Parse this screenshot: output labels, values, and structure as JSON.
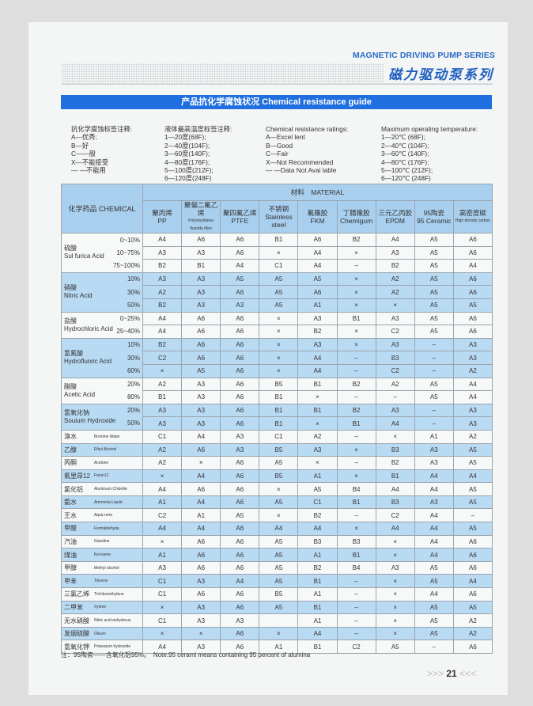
{
  "header": {
    "series_en": "MAGNETIC DRIVING PUMP SERIES",
    "series_cn": "磁力驱动泵系列",
    "band_title": "产品抗化学腐蚀状况 Chemical resistance guide"
  },
  "legend": [
    [
      "抗化学腐蚀标签注释:",
      "A—优秀;",
      "B—好",
      "C——般",
      "X—不能接受",
      "— —不能用"
    ],
    [
      "液体最高温度标签注释:",
      "1—20度(68F);",
      "2—40度(104F);",
      "3—60度(140F);",
      "4—80度(176F);",
      "5—100度(212F);",
      "6—120度(248F)"
    ],
    [
      "Chemical resistance ratings:",
      "A—Excel lent",
      "B—Good",
      "C—Fair",
      "X—Not Recommended",
      "— —Data Not Avai lable"
    ],
    [
      "Maximum operating temperature:",
      "1—20℃ (68F);",
      "2—40℃ (104F);",
      "3—60℃ (140F);",
      "4—80℃ (176F);",
      "5—100℃ (212F);",
      "6—120℃ (248F)"
    ]
  ],
  "table": {
    "chemical_header": "化学药品 CHEMICAL",
    "material_header": "材料　MATERIAL",
    "columns": [
      {
        "cn": "聚丙烯",
        "en": "PP"
      },
      {
        "cn": "聚偏二氟乙烯",
        "en": "Polyvinylidene fluoride fibre",
        "small": true
      },
      {
        "cn": "聚四氟乙烯",
        "en": "PTFE"
      },
      {
        "cn": "不锈钢",
        "en": "Stainless steel"
      },
      {
        "cn": "氟橡胶",
        "en": "FKM"
      },
      {
        "cn": "丁腈橡胶",
        "en": "Chemigum"
      },
      {
        "cn": "三元乙丙胶",
        "en": "EPDM"
      },
      {
        "cn": "95陶瓷",
        "en": "95 Ceramic"
      },
      {
        "cn": "高密度碳",
        "en": "High density carbon",
        "small": true
      }
    ],
    "groups": [
      {
        "cn": "硫酸",
        "en": "Sul furica Acid",
        "rows": [
          {
            "conc": "0~10%",
            "values": [
              "A4",
              "A6",
              "A6",
              "B1",
              "A6",
              "B2",
              "A4",
              "A5",
              "A6"
            ]
          },
          {
            "conc": "10~75%",
            "values": [
              "A3",
              "A3",
              "A6",
              "×",
              "A4",
              "×",
              "A3",
              "A5",
              "A6"
            ]
          },
          {
            "conc": "75~100%",
            "values": [
              "B2",
              "B1",
              "A4",
              "C1",
              "A4",
              "–",
              "B2",
              "A5",
              "A4"
            ]
          }
        ]
      },
      {
        "cn": "硝酸",
        "en": "Nitric Acid",
        "rows": [
          {
            "conc": "10%",
            "values": [
              "A3",
              "A3",
              "A5",
              "A5",
              "A5",
              "×",
              "A2",
              "A5",
              "A6"
            ]
          },
          {
            "conc": "30%",
            "values": [
              "A2",
              "A3",
              "A6",
              "A5",
              "A6",
              "×",
              "A2",
              "A5",
              "A6"
            ]
          },
          {
            "conc": "50%",
            "values": [
              "B2",
              "A3",
              "A3",
              "A5",
              "A1",
              "×",
              "×",
              "A5",
              "A5"
            ]
          }
        ]
      },
      {
        "cn": "盐酸",
        "en": "Hydrochloric Acid",
        "rows": [
          {
            "conc": "0~25%",
            "values": [
              "A4",
              "A6",
              "A6",
              "×",
              "A3",
              "B1",
              "A3",
              "A5",
              "A6"
            ]
          },
          {
            "conc": "25~40%",
            "values": [
              "A4",
              "A6",
              "A6",
              "×",
              "B2",
              "×",
              "C2",
              "A5",
              "A6"
            ]
          }
        ]
      },
      {
        "cn": "氢氟酸",
        "en": "Hydrofluoric Acid",
        "rows": [
          {
            "conc": "10%",
            "values": [
              "B2",
              "A6",
              "A6",
              "×",
              "A3",
              "×",
              "A3",
              "–",
              "A3"
            ]
          },
          {
            "conc": "30%",
            "values": [
              "C2",
              "A6",
              "A6",
              "×",
              "A4",
              "–",
              "B3",
              "–",
              "A3"
            ]
          },
          {
            "conc": "60%",
            "values": [
              "×",
              "A5",
              "A6",
              "×",
              "A4",
              "–",
              "C2",
              "–",
              "A2"
            ]
          }
        ]
      },
      {
        "cn": "醋酸",
        "en": "Acetic Acid",
        "rows": [
          {
            "conc": "20%",
            "values": [
              "A2",
              "A3",
              "A6",
              "B5",
              "B1",
              "B2",
              "A2",
              "A5",
              "A4"
            ]
          },
          {
            "conc": "80%",
            "values": [
              "B1",
              "A3",
              "A6",
              "B1",
              "×",
              "–",
              "–",
              "A5",
              "A4"
            ]
          }
        ]
      },
      {
        "cn": "氢氧化钠",
        "en": "Souium Hydroxide",
        "rows": [
          {
            "conc": "20%",
            "values": [
              "A3",
              "A3",
              "A6",
              "B1",
              "B1",
              "B2",
              "A3",
              "–",
              "A3"
            ]
          },
          {
            "conc": "50%",
            "values": [
              "A3",
              "A3",
              "A6",
              "B1",
              "×",
              "B1",
              "A4",
              "–",
              "A3"
            ]
          }
        ]
      },
      {
        "cn": "溴水",
        "en": "Bromine Water",
        "rows": [
          {
            "values": [
              "C1",
              "A4",
              "A3",
              "C1",
              "A2",
              "–",
              "×",
              "A1",
              "A2"
            ]
          }
        ]
      },
      {
        "cn": "乙醇",
        "en": "Ethyl Alcohol",
        "rows": [
          {
            "values": [
              "A2",
              "A6",
              "A3",
              "B5",
              "A3",
              "×",
              "B3",
              "A3",
              "A5"
            ]
          }
        ]
      },
      {
        "cn": "丙酮",
        "en": "Acetone",
        "rows": [
          {
            "values": [
              "A2",
              "×",
              "A6",
              "A5",
              "×",
              "–",
              "B2",
              "A3",
              "A5"
            ]
          }
        ]
      },
      {
        "cn": "氟里昂12",
        "en": "Freon12",
        "rows": [
          {
            "values": [
              "×",
              "A4",
              "A6",
              "B5",
              "A1",
              "×",
              "B1",
              "A4",
              "A4"
            ]
          }
        ]
      },
      {
        "cn": "氯化铝",
        "en": "Aluminum Chloride",
        "rows": [
          {
            "values": [
              "A4",
              "A6",
              "A6",
              "×",
              "A5",
              "B4",
              "A4",
              "A4",
              "A5"
            ]
          }
        ]
      },
      {
        "cn": "氨水",
        "en": "Ammonia Liquid",
        "rows": [
          {
            "values": [
              "A1",
              "A4",
              "A6",
              "A5",
              "C1",
              "B1",
              "B3",
              "A3",
              "A5"
            ]
          }
        ]
      },
      {
        "cn": "王水",
        "en": "Aqua reria",
        "rows": [
          {
            "values": [
              "C2",
              "A1",
              "A5",
              "×",
              "B2",
              "–",
              "C2",
              "A4",
              "–"
            ]
          }
        ]
      },
      {
        "cn": "甲醛",
        "en": "Formaldehyde.",
        "rows": [
          {
            "values": [
              "A4",
              "A4",
              "A6",
              "A4",
              "A4",
              "×",
              "A4",
              "A4",
              "A5"
            ]
          }
        ]
      },
      {
        "cn": "汽油",
        "en": "Gasoline",
        "rows": [
          {
            "values": [
              "×",
              "A6",
              "A6",
              "A5",
              "B3",
              "B3",
              "×",
              "A4",
              "A6"
            ]
          }
        ]
      },
      {
        "cn": "煤油",
        "en": "Kerosene",
        "rows": [
          {
            "values": [
              "A1",
              "A6",
              "A6",
              "A5",
              "A1",
              "B1",
              "×",
              "A4",
              "A6"
            ]
          }
        ]
      },
      {
        "cn": "甲醇",
        "en": "Methyl alcohol",
        "rows": [
          {
            "values": [
              "A3",
              "A6",
              "A6",
              "A5",
              "B2",
              "B4",
              "A3",
              "A5",
              "A6"
            ]
          }
        ]
      },
      {
        "cn": "甲苯",
        "en": "Toluene",
        "rows": [
          {
            "values": [
              "C1",
              "A3",
              "A4",
              "A5",
              "B1",
              "–",
              "×",
              "A5",
              "A4"
            ]
          }
        ]
      },
      {
        "cn": "三氯乙烯",
        "en": "Trichloroethylene",
        "rows": [
          {
            "values": [
              "C1",
              "A6",
              "A6",
              "B5",
              "A1",
              "–",
              "×",
              "A4",
              "A6"
            ]
          }
        ]
      },
      {
        "cn": "二甲苯",
        "en": "Xylene",
        "rows": [
          {
            "values": [
              "×",
              "A3",
              "A6",
              "A5",
              "B1",
              "–",
              "×",
              "A5",
              "A5"
            ]
          }
        ]
      },
      {
        "cn": "无水硝酸",
        "en": "Nitric acid anhydrous",
        "rows": [
          {
            "values": [
              "C1",
              "A3",
              "A3",
              "",
              "A1",
              "–",
              "×",
              "A5",
              "A2"
            ]
          }
        ]
      },
      {
        "cn": "发烟硫酸",
        "en": "Oleum",
        "rows": [
          {
            "values": [
              "×",
              "×",
              "A6",
              "×",
              "A4",
              "–",
              "×",
              "A5",
              "A2"
            ]
          }
        ]
      },
      {
        "cn": "氢氧化钾",
        "en": "Potassium hydroxide",
        "rows": [
          {
            "values": [
              "A4",
              "A3",
              "A6",
              "A1",
              "B1",
              "C2",
              "A5",
              "–",
              "A6"
            ]
          }
        ]
      }
    ]
  },
  "note": "注：95陶瓷——含氧化铝95%。　Note:95 cerami means containing 95 percent of alumina",
  "page_number": "21",
  "colors": {
    "accent": "#1f6fe0",
    "header_text": "#2a6bc9",
    "row_blue": "#b9daf3",
    "header_blue": "#a9cfee"
  }
}
